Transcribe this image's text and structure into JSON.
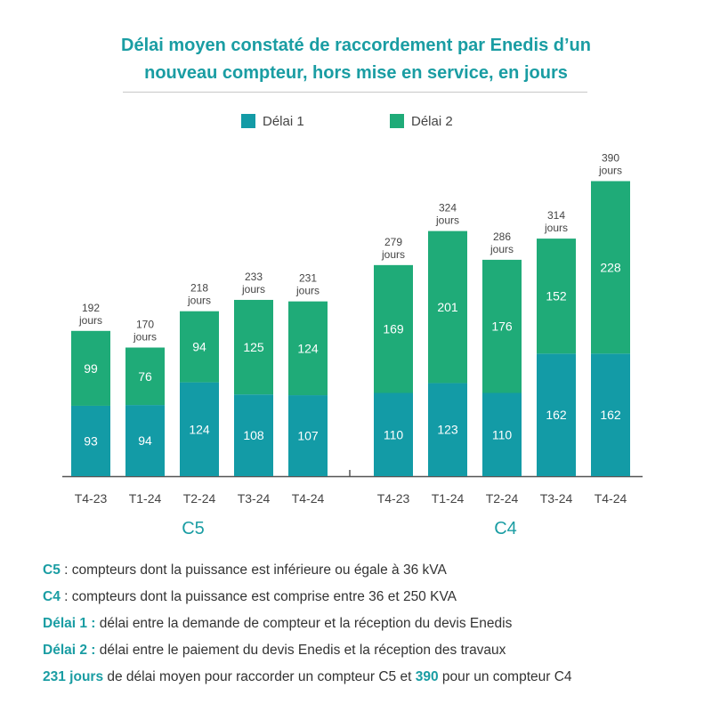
{
  "title_line1": "Délai moyen constaté de raccordement par Enedis d’un",
  "title_line2": "nouveau compteur, hors mise en service, en jours",
  "colors": {
    "delai1": "#139ba6",
    "delai2": "#1fab78",
    "accent": "#1a9da3"
  },
  "chart_data": {
    "type": "bar",
    "stacked": true,
    "series": [
      {
        "name": "Délai 1",
        "color": "#139ba6"
      },
      {
        "name": "Délai 2",
        "color": "#1fab78"
      }
    ],
    "groups": [
      {
        "name": "C5",
        "bars": [
          {
            "label": "T4-23",
            "delai1": 93,
            "delai2": 99,
            "total": "192",
            "unit": "jours"
          },
          {
            "label": "T1-24",
            "delai1": 94,
            "delai2": 76,
            "total": "170",
            "unit": "jours"
          },
          {
            "label": "T2-24",
            "delai1": 124,
            "delai2": 94,
            "total": "218",
            "unit": "jours"
          },
          {
            "label": "T3-24",
            "delai1": 108,
            "delai2": 125,
            "total": "233",
            "unit": "jours"
          },
          {
            "label": "T4-24",
            "delai1": 107,
            "delai2": 124,
            "total": "231",
            "unit": "jours"
          }
        ]
      },
      {
        "name": "C4",
        "bars": [
          {
            "label": "T4-23",
            "delai1": 110,
            "delai2": 169,
            "total": "279",
            "unit": "jours"
          },
          {
            "label": "T1-24",
            "delai1": 123,
            "delai2": 201,
            "total": "324",
            "unit": "jours"
          },
          {
            "label": "T2-24",
            "delai1": 110,
            "delai2": 176,
            "total": "286",
            "unit": "jours"
          },
          {
            "label": "T3-24",
            "delai1": 162,
            "delai2": 152,
            "total": "314",
            "unit": "jours"
          },
          {
            "label": "T4-24",
            "delai1": 162,
            "delai2": 228,
            "total": "390",
            "unit": "jours"
          }
        ]
      }
    ],
    "legend_position": "top-center",
    "grid": false
  },
  "notes": [
    {
      "key": "C5",
      "text": " : compteurs dont la puissance est inférieure ou égale à 36 kVA"
    },
    {
      "key": "C4",
      "text": " : compteurs dont la puissance est comprise entre 36 et 250 KVA"
    },
    {
      "key": "Délai 1 :",
      "text": " délai entre la demande de compteur et la réception du devis Enedis"
    },
    {
      "key": "Délai 2 :",
      "text": " délai entre le paiement du devis Enedis et la réception des travaux"
    }
  ],
  "summary": {
    "c5_value": "231 jours",
    "text_mid": " de délai moyen pour raccorder un compteur C5 et ",
    "c4_value": "390",
    "text_end": " pour un compteur C4"
  }
}
